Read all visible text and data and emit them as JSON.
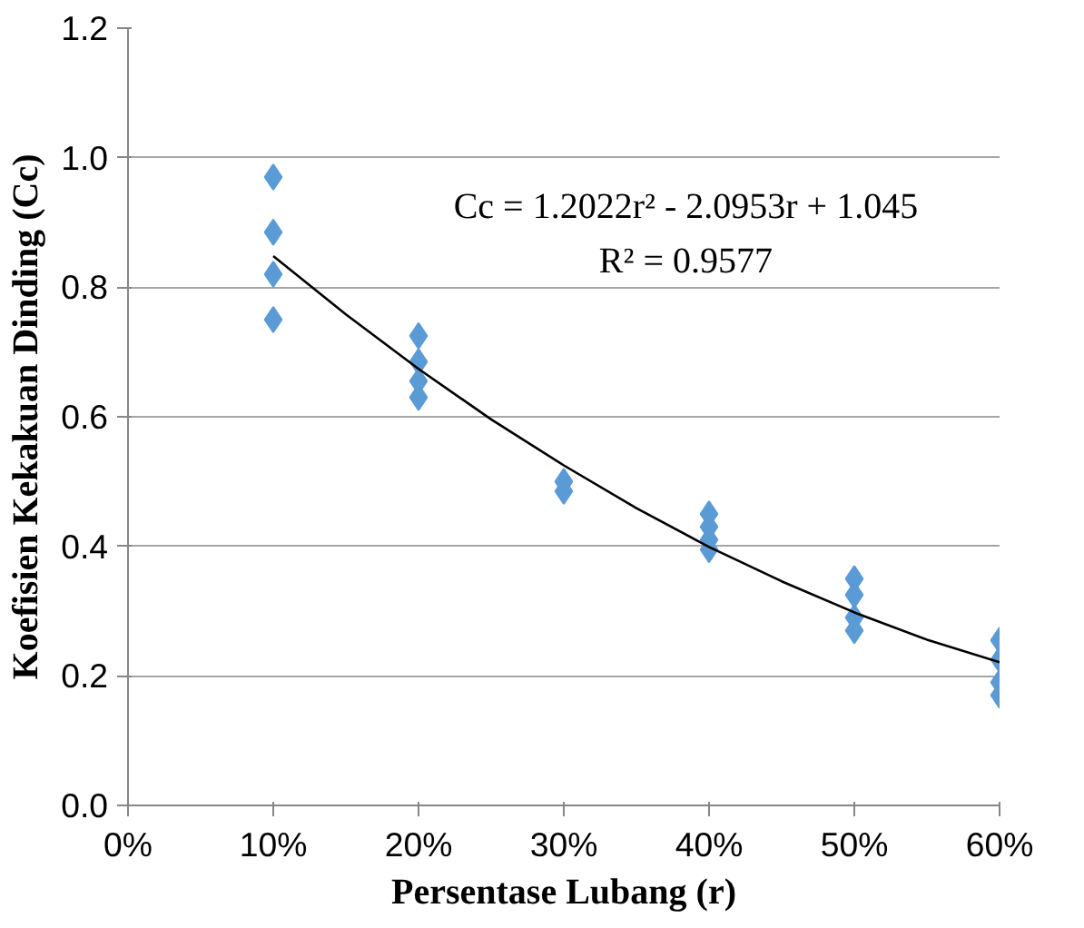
{
  "chart_data": {
    "type": "scatter",
    "xlabel": "Persentase Lubang (r)",
    "ylabel": "Koefisien Kekakuan Dinding (Cc)",
    "xlim": [
      0,
      0.6
    ],
    "xticks": [
      {
        "value": 0,
        "label": "0%"
      },
      {
        "value": 0.1,
        "label": "10%"
      },
      {
        "value": 0.2,
        "label": "20%"
      },
      {
        "value": 0.3,
        "label": "30%"
      },
      {
        "value": 0.4,
        "label": "40%"
      },
      {
        "value": 0.5,
        "label": "50%"
      },
      {
        "value": 0.6,
        "label": "60%"
      }
    ],
    "ylim": [
      0,
      1.2
    ],
    "yticks": [
      {
        "value": 0,
        "label": "0.0"
      },
      0.2,
      0.4,
      0.6,
      0.8,
      {
        "value": 1,
        "label": "1.0"
      },
      1.2
    ],
    "grid": "y",
    "marker": "diamond",
    "annotations": [
      "Cc = 1.2022r² - 2.0953r + 1.045",
      "R² = 0.9577"
    ],
    "series": [
      {
        "color": "#5b9bd5",
        "x": [
          0.1,
          0.1,
          0.1,
          0.1,
          0.2,
          0.2,
          0.2,
          0.2,
          0.3,
          0.3,
          0.4,
          0.4,
          0.4,
          0.4,
          0.5,
          0.5,
          0.5,
          0.5,
          0.6,
          0.6,
          0.6,
          0.6
        ],
        "values": [
          0.97,
          0.885,
          0.82,
          0.75,
          0.725,
          0.685,
          0.655,
          0.63,
          0.5,
          0.485,
          0.45,
          0.43,
          0.41,
          0.395,
          0.35,
          0.325,
          0.29,
          0.27,
          0.255,
          0.225,
          0.19,
          0.17
        ]
      },
      {
        "type": "line",
        "color": "#000000",
        "marker": "none",
        "x": [
          0.1,
          0.15,
          0.2,
          0.25,
          0.3,
          0.35,
          0.4,
          0.45,
          0.5,
          0.55,
          0.6
        ],
        "values": [
          0.848,
          0.758,
          0.674,
          0.596,
          0.525,
          0.459,
          0.399,
          0.346,
          0.298,
          0.256,
          0.221
        ]
      }
    ]
  }
}
